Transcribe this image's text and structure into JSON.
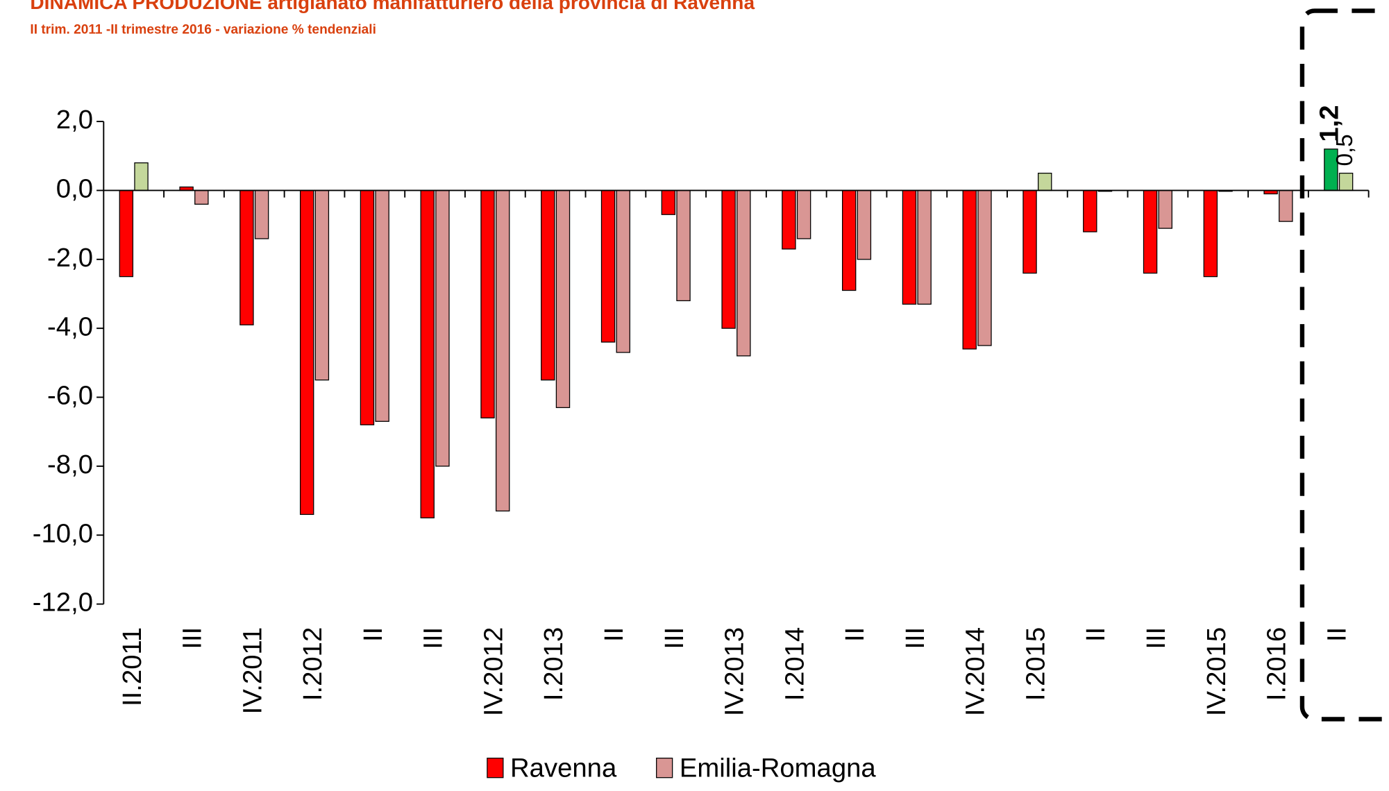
{
  "chart_data": {
    "type": "bar",
    "title": "DINAMICA PRODUZIONE artigianato manifatturiero  della provincia di Ravenna",
    "subtitle": "II trim. 2011 -II trimestre 2016 - variazione % tendenziali",
    "categories": [
      "II.2011",
      "III",
      "IV.2011",
      "I.2012",
      "II",
      "III",
      "IV.2012",
      "I.2013",
      "II",
      "III",
      "IV.2013",
      "I.2014",
      "II",
      "III",
      "IV.2014",
      "I.2015",
      "II",
      "III",
      "IV.2015",
      "I.2016",
      "II"
    ],
    "series": [
      {
        "name": "Ravenna",
        "color": "#ff0000",
        "colors": [
          "#ff0000",
          "#ff0000",
          "#ff0000",
          "#ff0000",
          "#ff0000",
          "#ff0000",
          "#ff0000",
          "#ff0000",
          "#ff0000",
          "#ff0000",
          "#ff0000",
          "#ff0000",
          "#ff0000",
          "#ff0000",
          "#ff0000",
          "#ff0000",
          "#ff0000",
          "#ff0000",
          "#ff0000",
          "#ff0000",
          "#00b050"
        ],
        "values": [
          -2.5,
          0.1,
          -3.9,
          -9.4,
          -6.8,
          -9.5,
          -6.6,
          -5.5,
          -4.4,
          -0.7,
          -4.0,
          -1.7,
          -2.9,
          -3.3,
          -4.6,
          -2.4,
          -1.2,
          -2.4,
          -2.5,
          -0.1,
          1.2
        ],
        "value_labels": [
          null,
          null,
          null,
          null,
          null,
          null,
          null,
          null,
          null,
          null,
          null,
          null,
          null,
          null,
          null,
          null,
          null,
          null,
          null,
          null,
          "1,2"
        ]
      },
      {
        "name": "Emilia-Romagna",
        "color": "#d99694",
        "colors": [
          "#c4d79b",
          "#d99694",
          "#d99694",
          "#d99694",
          "#d99694",
          "#d99694",
          "#d99694",
          "#d99694",
          "#d99694",
          "#d99694",
          "#d99694",
          "#d99694",
          "#d99694",
          "#d99694",
          "#d99694",
          "#c4d79b",
          "#c4d79b",
          "#d99694",
          "#c4d79b",
          "#d99694",
          "#c4d79b"
        ],
        "values": [
          0.8,
          -0.4,
          -1.4,
          -5.5,
          -6.7,
          -8.0,
          -9.3,
          -6.3,
          -4.7,
          -3.2,
          -4.8,
          -1.4,
          -2.0,
          -3.3,
          -4.5,
          0.5,
          0.0,
          -1.1,
          0.0,
          -0.9,
          0.5
        ],
        "value_labels": [
          null,
          null,
          null,
          null,
          null,
          null,
          null,
          null,
          null,
          null,
          null,
          null,
          null,
          null,
          null,
          null,
          null,
          null,
          null,
          null,
          "0,5"
        ]
      }
    ],
    "ylim": [
      -12,
      2
    ],
    "yticks": [
      {
        "value": 2,
        "label": "2,0"
      },
      {
        "value": 0,
        "label": "0,0"
      },
      {
        "value": -2,
        "label": "-2,0"
      },
      {
        "value": -4,
        "label": "-4,0"
      },
      {
        "value": -6,
        "label": "-6,0"
      },
      {
        "value": -8,
        "label": "-8,0"
      },
      {
        "value": -10,
        "label": "-10,0"
      },
      {
        "value": -12,
        "label": "-12,0"
      }
    ],
    "legend": "bottom"
  }
}
